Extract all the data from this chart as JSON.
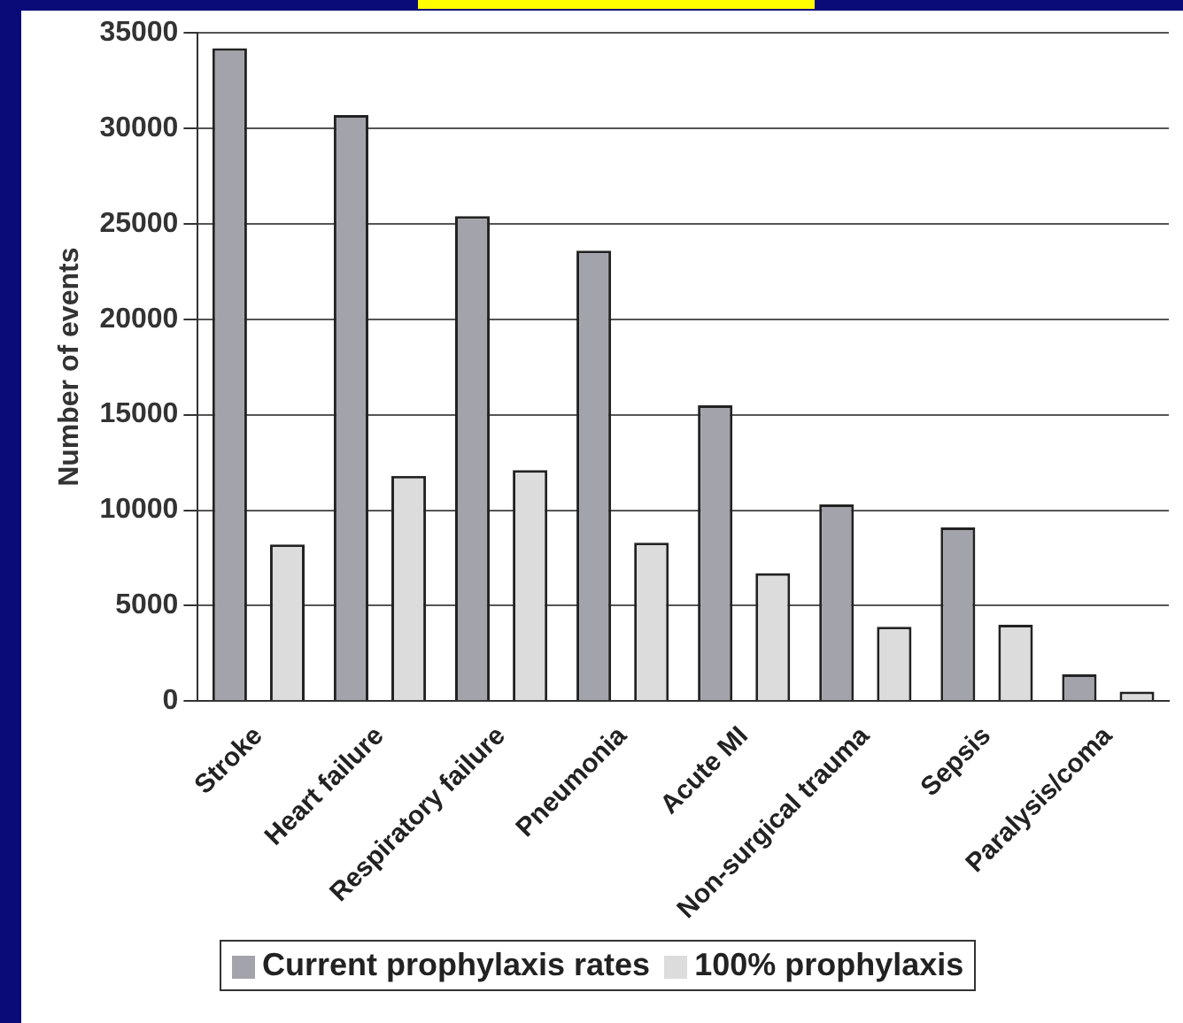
{
  "chart_data": {
    "type": "bar",
    "ylabel": "Number of events",
    "categories": [
      "Stroke",
      "Heart failure",
      "Respiratory failure",
      "Pneumonia",
      "Acute MI",
      "Non-surgical trauma",
      "Sepsis",
      "Paralysis/coma"
    ],
    "series": [
      {
        "name": "Current prophylaxis rates",
        "color": "#a3a3ab",
        "values": [
          34200,
          30700,
          25400,
          23600,
          15500,
          10300,
          9100,
          1400
        ]
      },
      {
        "name": "100% prophylaxis",
        "color": "#dcdcdc",
        "values": [
          8200,
          11800,
          12100,
          8300,
          6700,
          3900,
          4000,
          500
        ]
      }
    ],
    "ylim": [
      0,
      35000
    ],
    "yticks": [
      0,
      5000,
      10000,
      15000,
      20000,
      25000,
      30000,
      35000
    ],
    "grid": "y",
    "legend": "bottom"
  }
}
